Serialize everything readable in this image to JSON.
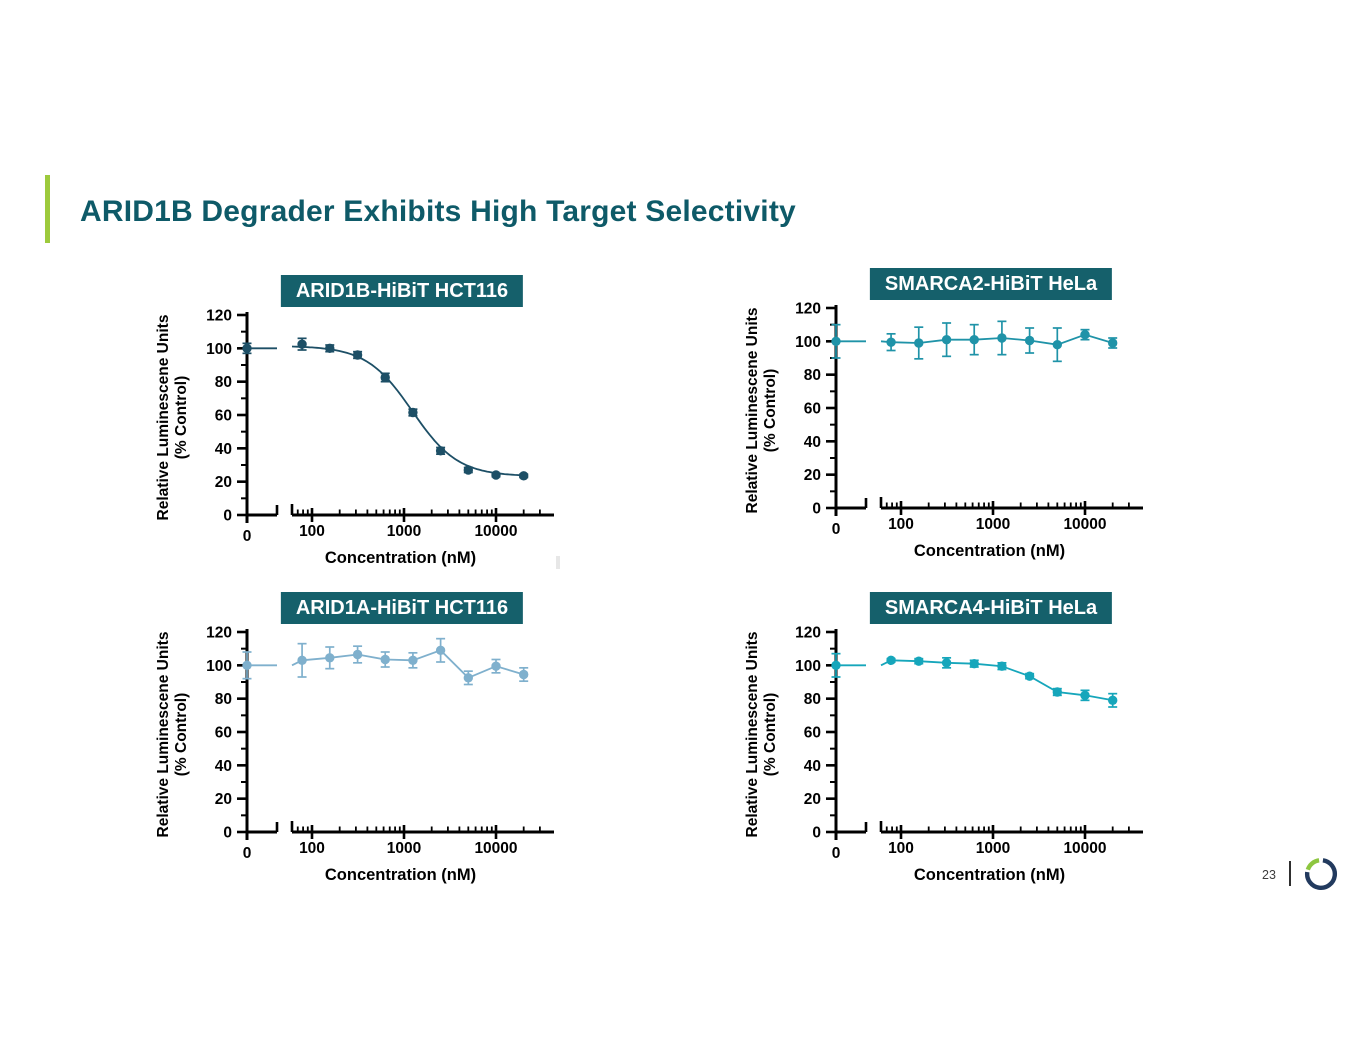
{
  "slide": {
    "title": "ARID1B Degrader Exhibits High Target Selectivity",
    "title_color": "#0e5a68",
    "accent_green": "#9dca3c",
    "titlebox_bg": "#15606b"
  },
  "axes": {
    "ylabel_line1": "Relative Luminescene Units",
    "ylabel_line2": "(% Control)",
    "xlabel": "Concentration (nM)",
    "x_zero_label": "0",
    "y_ticks": [
      0,
      20,
      40,
      60,
      80,
      100,
      120
    ],
    "x_decades": [
      100,
      1000,
      10000
    ],
    "x_decade_labels": [
      "100",
      "1000",
      "10000"
    ],
    "ylim": [
      0,
      120
    ],
    "x_axis_break": true,
    "grid": false
  },
  "chart_data": [
    {
      "type": "scatter-line",
      "title": "ARID1B-HiBiT HCT116",
      "color": "#1d4f66",
      "fit": "sigmoid",
      "fit_params": {
        "top": 101.5,
        "bottom": 23.2,
        "ic50": 1230,
        "hill": 1.75
      },
      "x": [
        0,
        78,
        156,
        313,
        625,
        1250,
        2500,
        5000,
        10000,
        20000
      ],
      "y": [
        100,
        102.5,
        100,
        96,
        82.5,
        61.5,
        38.5,
        27,
        24,
        23.5
      ],
      "err": [
        3,
        3.5,
        2,
        2,
        2.5,
        2,
        2,
        1.5,
        1,
        1
      ]
    },
    {
      "type": "scatter-line",
      "title": "SMARCA2-HiBiT HeLa",
      "color": "#1f93a8",
      "fit": "line",
      "x": [
        0,
        78,
        156,
        313,
        625,
        1250,
        2500,
        5000,
        10000,
        20000
      ],
      "y": [
        100,
        99.5,
        99,
        101,
        101,
        102,
        100.5,
        98,
        104,
        99
      ],
      "err": [
        10,
        5,
        9.5,
        10,
        9,
        10,
        7.5,
        10,
        3,
        3
      ]
    },
    {
      "type": "scatter-line",
      "title": "ARID1A-HiBiT HCT116",
      "color": "#7fb0cd",
      "fit": "line",
      "x": [
        0,
        78,
        156,
        313,
        625,
        1250,
        2500,
        5000,
        10000,
        20000
      ],
      "y": [
        100,
        103,
        104.5,
        106.5,
        103.5,
        103,
        109,
        92.5,
        99.5,
        94.5
      ],
      "err": [
        8,
        10,
        6.5,
        5,
        4.5,
        4.5,
        7,
        4,
        4,
        4
      ]
    },
    {
      "type": "scatter-line",
      "title": "SMARCA4-HiBiT HeLa",
      "color": "#16a6bb",
      "fit": "line",
      "x": [
        0,
        78,
        156,
        313,
        625,
        1250,
        2500,
        5000,
        10000,
        20000
      ],
      "y": [
        100,
        103,
        102.5,
        101.5,
        101,
        99.5,
        93.5,
        84,
        82,
        79
      ],
      "err": [
        7,
        1,
        1.5,
        3,
        2,
        2,
        1.5,
        2,
        3,
        4
      ]
    }
  ],
  "footer": {
    "page_number": "23",
    "logo": {
      "navy": "#223a5e",
      "green": "#8dc63f"
    }
  }
}
